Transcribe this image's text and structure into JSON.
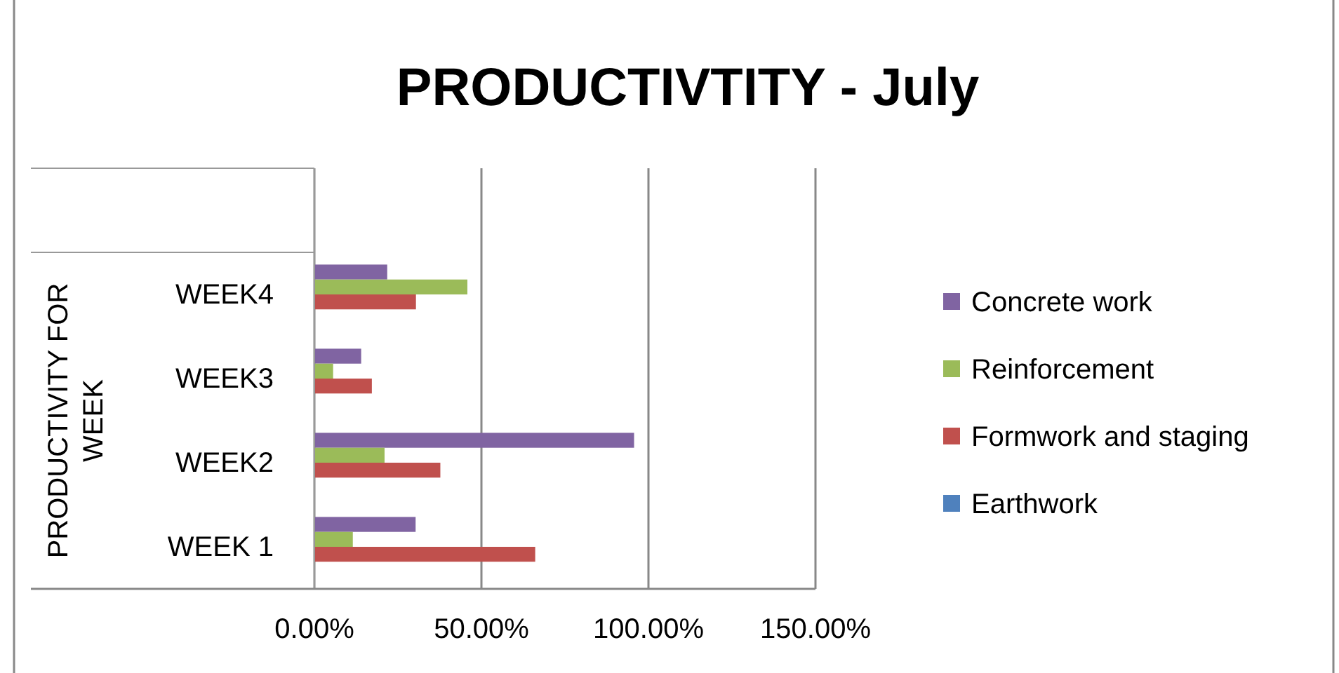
{
  "chart_data": {
    "type": "bar",
    "orientation": "horizontal",
    "title": "PRODUCTIVTITY - July",
    "ylabel": "PRODUCTIVITY FOR WEEK",
    "categories": [
      "WEEK4",
      "WEEK3",
      "WEEK2",
      "WEEK 1"
    ],
    "series": [
      {
        "name": "Concrete work",
        "color": "#8064a2",
        "values": [
          21.8,
          14.0,
          95.7,
          30.3
        ]
      },
      {
        "name": "Reinforcement",
        "color": "#9bbb59",
        "values": [
          45.8,
          5.6,
          21.0,
          11.5
        ]
      },
      {
        "name": "Formwork and staging",
        "color": "#c0504d",
        "values": [
          30.4,
          17.2,
          37.7,
          66.1
        ]
      },
      {
        "name": "Earthwork",
        "color": "#4f81bd",
        "values": [
          0,
          0,
          0,
          0
        ]
      }
    ],
    "xlim": [
      0,
      150
    ],
    "xticks": [
      {
        "value": 0,
        "label": "0.00%"
      },
      {
        "value": 50,
        "label": "50.00%"
      },
      {
        "value": 100,
        "label": "100.00%"
      },
      {
        "value": 150,
        "label": "150.00%"
      }
    ],
    "grid": "x",
    "legend": "right"
  }
}
